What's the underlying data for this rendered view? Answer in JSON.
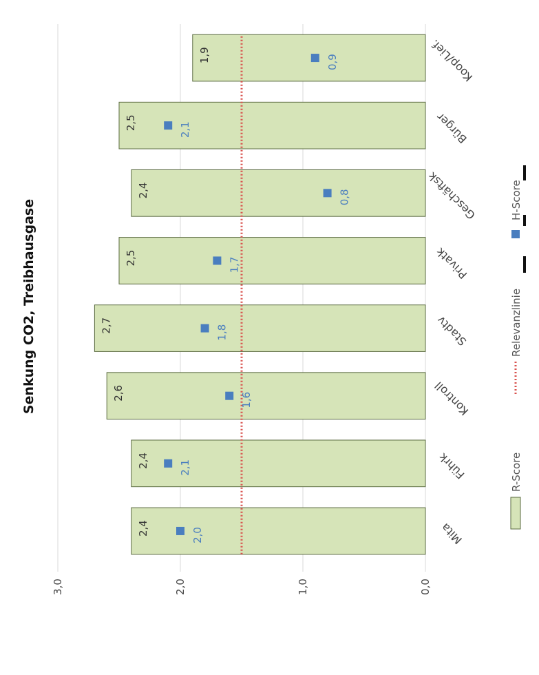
{
  "chart_data": {
    "type": "bar",
    "orientation": "rotated-vertical",
    "title": "Senkung CO2, Treibhausgase",
    "categories": [
      "Mita",
      "Führk",
      "Kontroll",
      "Stadtv",
      "Privatk",
      "Geschäftsk",
      "Bürger",
      "Koop/Lief."
    ],
    "series": [
      {
        "name": "R-Score",
        "kind": "bar",
        "color": "#d6e4b8",
        "values": [
          2.4,
          2.4,
          2.6,
          2.7,
          2.5,
          2.4,
          2.5,
          1.9
        ],
        "labels": [
          "2,4",
          "2,4",
          "2,6",
          "2,7",
          "2,5",
          "2,4",
          "2,5",
          "1,9"
        ]
      },
      {
        "name": "H-Score",
        "kind": "marker",
        "color": "#4a7ebf",
        "values": [
          2.0,
          2.1,
          1.6,
          1.8,
          1.7,
          0.8,
          2.1,
          0.9
        ],
        "labels": [
          "2,0",
          "2,1",
          "1,6",
          "1,8",
          "1,7",
          "0,8",
          "2,1",
          "0,9"
        ]
      },
      {
        "name": "Relevanzlinie",
        "kind": "line",
        "color": "#d9534f",
        "values": [
          1.5,
          1.5,
          1.5,
          1.5,
          1.5,
          1.5,
          1.5,
          1.5
        ]
      }
    ],
    "ylim": [
      0,
      3
    ],
    "yticks": [
      "0,0",
      "1,0",
      "2,0",
      "3,0"
    ],
    "grid": true,
    "legend": [
      "R-Score",
      "Relevanzlinie",
      "H-Score"
    ]
  }
}
